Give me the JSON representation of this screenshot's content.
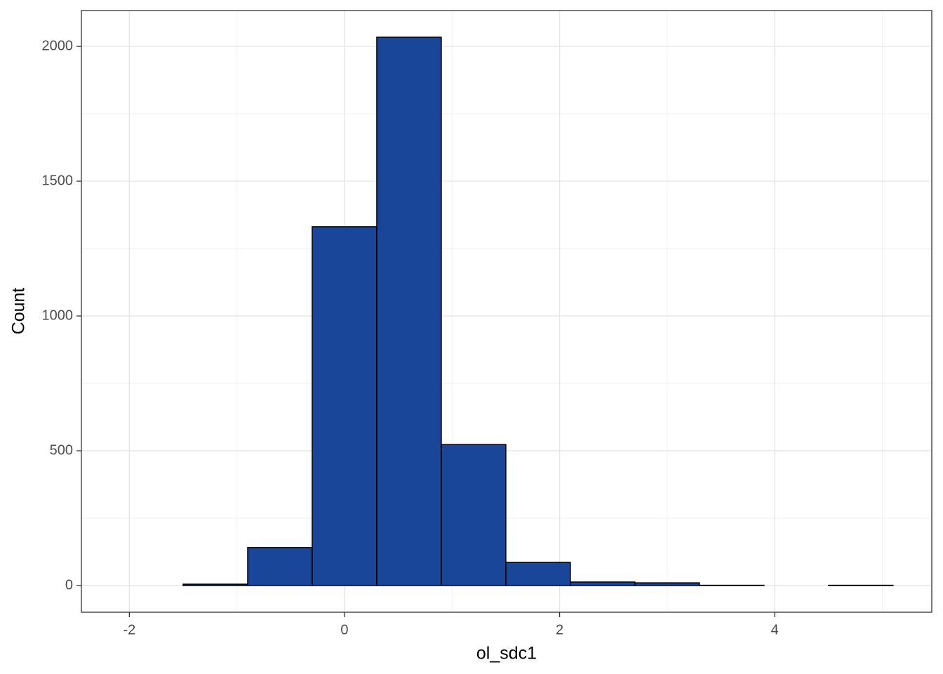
{
  "chart_data": {
    "type": "histogram",
    "x_label": "ol_sdc1",
    "y_label": "Count",
    "bins": [
      -2.1,
      -1.5,
      -0.9,
      -0.3,
      0.3,
      0.9,
      1.5,
      2.1,
      2.7,
      3.3,
      3.9,
      4.5,
      5.1
    ],
    "counts": [
      0,
      5,
      141,
      1331,
      2034,
      523,
      86,
      13,
      10,
      1,
      0,
      1
    ],
    "color": "#1a4699",
    "edge_color": "#000000",
    "xlim": [
      -2.446,
      5.46
    ],
    "ylim": [
      -99,
      2133
    ],
    "xticks": [
      -2,
      0,
      2,
      4
    ],
    "yticks": [
      0,
      500,
      1000,
      1500,
      2000
    ],
    "grid": true
  }
}
